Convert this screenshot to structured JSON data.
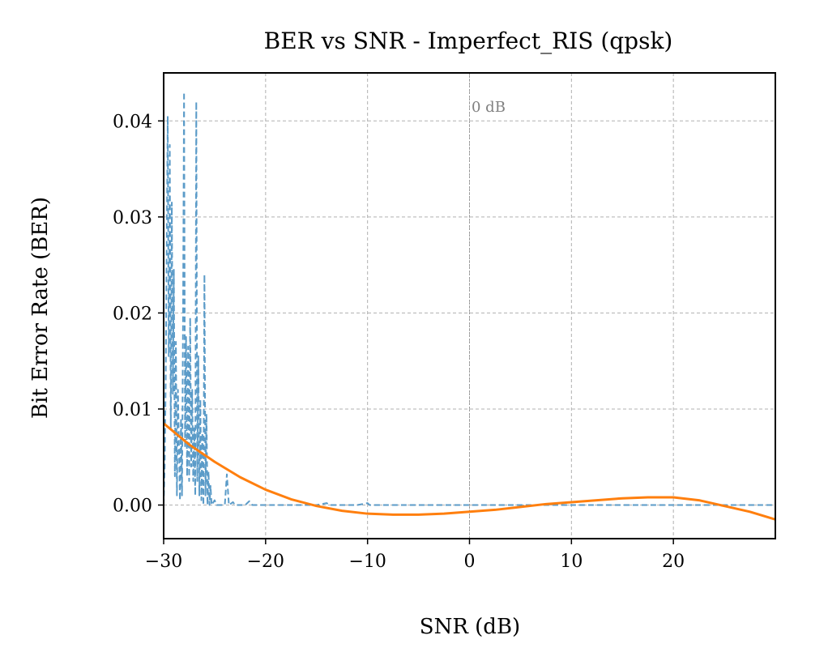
{
  "chart_data": {
    "type": "line",
    "title": "BER vs SNR - Imperfect_RIS (qpsk)",
    "xlabel": "SNR (dB)",
    "ylabel": "Bit Error Rate (BER)",
    "xlim": [
      -30,
      30
    ],
    "ylim": [
      -0.0035,
      0.045
    ],
    "x_ticks": [
      -30,
      -20,
      -10,
      0,
      10,
      20
    ],
    "x_tick_labels": [
      "−30",
      "−20",
      "−10",
      "0",
      "10",
      "20"
    ],
    "y_ticks": [
      0.0,
      0.01,
      0.02,
      0.03,
      0.04
    ],
    "y_tick_labels": [
      "0.00",
      "0.01",
      "0.02",
      "0.03",
      "0.04"
    ],
    "grid": true,
    "annotation": {
      "text": "0 dB",
      "x": 0,
      "vline": true
    },
    "series": [
      {
        "style": "dashed",
        "color": "#5b9bc8",
        "points": [
          [
            -30.0,
            0.0
          ],
          [
            -29.9,
            0.004
          ],
          [
            -29.8,
            0.013
          ],
          [
            -29.7,
            0.027
          ],
          [
            -29.6,
            0.0405
          ],
          [
            -29.5,
            0.0155
          ],
          [
            -29.4,
            0.0375
          ],
          [
            -29.3,
            0.008
          ],
          [
            -29.2,
            0.0315
          ],
          [
            -29.1,
            0.0115
          ],
          [
            -29.0,
            0.0245
          ],
          [
            -28.9,
            0.003
          ],
          [
            -28.8,
            0.017
          ],
          [
            -28.7,
            0.001
          ],
          [
            -28.6,
            0.012
          ],
          [
            -28.4,
            0.0005
          ],
          [
            -28.3,
            0.009
          ],
          [
            -28.2,
            0.001
          ],
          [
            -28.1,
            0.019
          ],
          [
            -28.0,
            0.043
          ],
          [
            -27.9,
            0.006
          ],
          [
            -27.8,
            0.0175
          ],
          [
            -27.7,
            0.003
          ],
          [
            -27.6,
            0.0165
          ],
          [
            -27.5,
            0.0025
          ],
          [
            -27.4,
            0.0195
          ],
          [
            -27.3,
            0.004
          ],
          [
            -27.2,
            0.012
          ],
          [
            -27.1,
            0.0025
          ],
          [
            -27.0,
            0.008
          ],
          [
            -26.9,
            0.001
          ],
          [
            -26.8,
            0.042
          ],
          [
            -26.7,
            0.0025
          ],
          [
            -26.6,
            0.0155
          ],
          [
            -26.5,
            0.001
          ],
          [
            -26.4,
            0.011
          ],
          [
            -26.3,
            0.0005
          ],
          [
            -26.2,
            0.0075
          ],
          [
            -26.1,
            0.0
          ],
          [
            -26.0,
            0.024
          ],
          [
            -25.9,
            0.001
          ],
          [
            -25.8,
            0.0095
          ],
          [
            -25.7,
            0.0
          ],
          [
            -25.6,
            0.0035
          ],
          [
            -25.5,
            0.0
          ],
          [
            -25.4,
            0.002
          ],
          [
            -25.3,
            0.0
          ],
          [
            -25.0,
            0.0005
          ],
          [
            -24.8,
            0.0
          ],
          [
            -24.0,
            0.0
          ],
          [
            -23.8,
            0.0032
          ],
          [
            -23.6,
            0.0
          ],
          [
            -23.2,
            0.0003
          ],
          [
            -23.0,
            0.0
          ],
          [
            -22.0,
            0.0
          ],
          [
            -21.6,
            0.0004
          ],
          [
            -21.3,
            0.0
          ],
          [
            -15.0,
            0.0
          ],
          [
            -14.0,
            0.0002
          ],
          [
            -13.8,
            0.0
          ],
          [
            -11.0,
            0.0
          ],
          [
            -10.0,
            0.0002
          ],
          [
            -9.8,
            0.0
          ],
          [
            30.0,
            0.0
          ]
        ]
      },
      {
        "style": "solid",
        "color": "#ff7f0e",
        "points": [
          [
            -30,
            0.0085
          ],
          [
            -27.5,
            0.0063
          ],
          [
            -25,
            0.0045
          ],
          [
            -22.5,
            0.0029
          ],
          [
            -20,
            0.0016
          ],
          [
            -17.5,
            0.0006
          ],
          [
            -15,
            -0.0001
          ],
          [
            -12.5,
            -0.0006
          ],
          [
            -10,
            -0.0009
          ],
          [
            -7.5,
            -0.001
          ],
          [
            -5,
            -0.001
          ],
          [
            -2.5,
            -0.0009
          ],
          [
            0,
            -0.0007
          ],
          [
            2.5,
            -0.0005
          ],
          [
            5,
            -0.0002
          ],
          [
            7.5,
            0.0001
          ],
          [
            10,
            0.0003
          ],
          [
            12.5,
            0.0005
          ],
          [
            15,
            0.0007
          ],
          [
            17.5,
            0.0008
          ],
          [
            20,
            0.0008
          ],
          [
            22.5,
            0.0005
          ],
          [
            25,
            -0.0001
          ],
          [
            27.5,
            -0.0007
          ],
          [
            30,
            -0.0015
          ]
        ]
      }
    ]
  }
}
